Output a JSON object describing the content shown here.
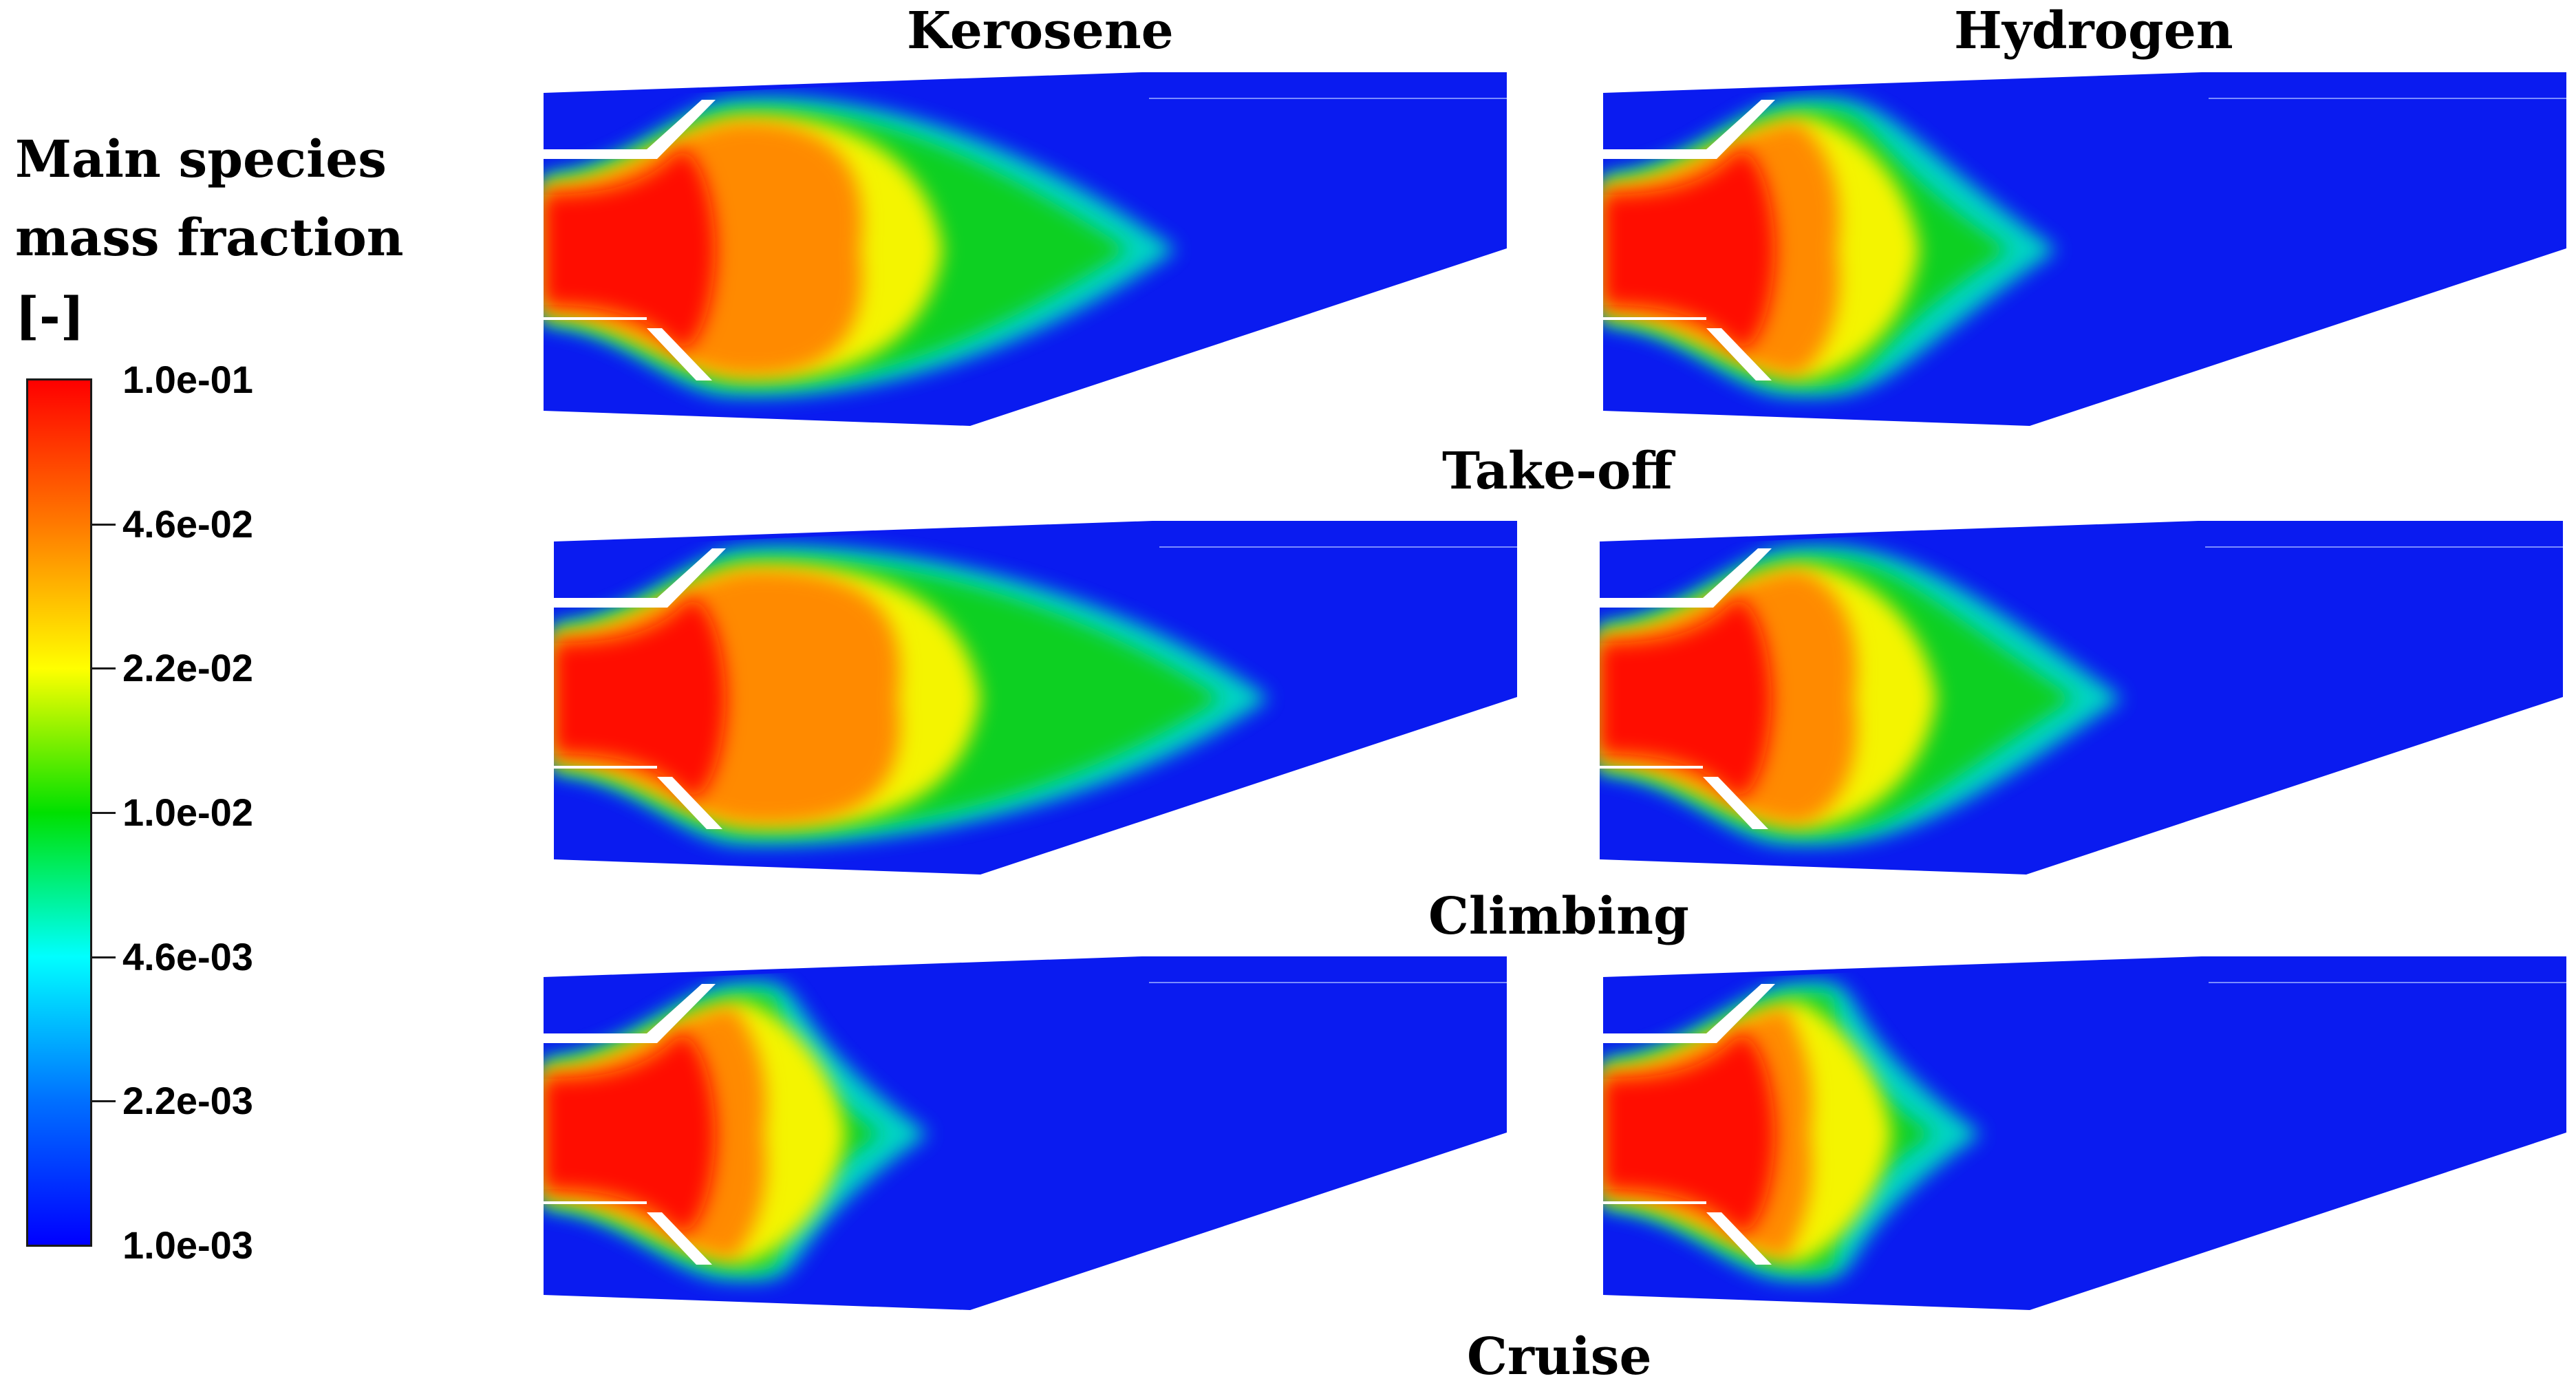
{
  "columns": [
    "Kerosene",
    "Hydrogen"
  ],
  "rows": [
    "Take-off",
    "Climbing",
    "Cruise"
  ],
  "colorbar": {
    "title_lines": [
      "Main species",
      "mass fraction",
      "[-]"
    ],
    "ticks": [
      "1.0e-01",
      "4.6e-02",
      "2.2e-02",
      "1.0e-02",
      "4.6e-03",
      "2.2e-03",
      "1.0e-03"
    ],
    "colors": [
      "#ff0000",
      "#ff7a00",
      "#ffff00",
      "#00e000",
      "#00ffff",
      "#0070ff",
      "#0000ff"
    ]
  },
  "domain_color": "#0a1bf0"
}
